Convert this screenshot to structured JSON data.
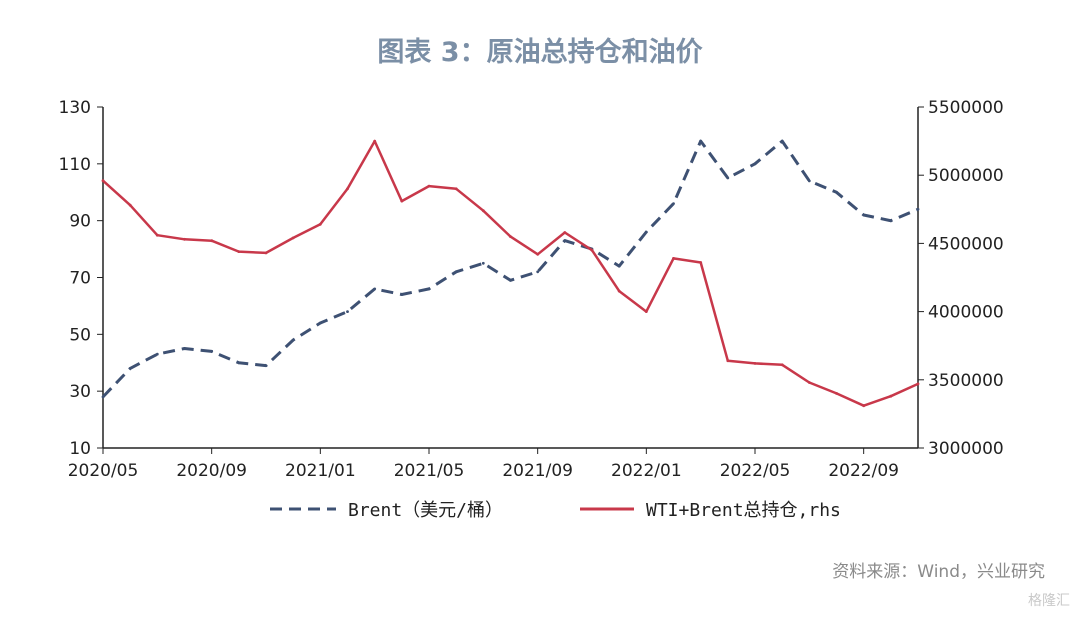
{
  "title": "图表 3：原油总持仓和油价",
  "source": "资料来源：Wind，兴业研究",
  "watermark": "格隆汇",
  "colors": {
    "brent": "#3e5173",
    "oi": "#c8384a"
  },
  "chart_data": {
    "type": "line",
    "x_ticks": [
      "2020/05",
      "2020/09",
      "2021/01",
      "2021/05",
      "2021/09",
      "2022/01",
      "2022/05",
      "2022/09"
    ],
    "left_axis": {
      "ticks": [
        "10",
        "30",
        "50",
        "70",
        "90",
        "110",
        "130"
      ],
      "ylim": [
        10,
        130
      ]
    },
    "right_axis": {
      "ticks": [
        "3000000",
        "3500000",
        "4000000",
        "4500000",
        "5000000",
        "5500000"
      ],
      "ylim": [
        3000000,
        5500000
      ]
    },
    "x_range": [
      "2020-05",
      "2022-11"
    ],
    "series": [
      {
        "name": "Brent（美元/桶）",
        "axis": "left",
        "style": "dashed",
        "x": [
          "2020-05",
          "2020-06",
          "2020-07",
          "2020-08",
          "2020-09",
          "2020-10",
          "2020-11",
          "2020-12",
          "2021-01",
          "2021-02",
          "2021-03",
          "2021-04",
          "2021-05",
          "2021-06",
          "2021-07",
          "2021-08",
          "2021-09",
          "2021-10",
          "2021-11",
          "2021-12",
          "2022-01",
          "2022-02",
          "2022-03",
          "2022-04",
          "2022-05",
          "2022-06",
          "2022-07",
          "2022-08",
          "2022-09",
          "2022-10",
          "2022-11"
        ],
        "values": [
          28,
          38,
          43,
          45,
          44,
          40,
          39,
          48,
          54,
          58,
          66,
          64,
          66,
          72,
          75,
          69,
          72,
          83,
          80,
          74,
          86,
          96,
          118,
          105,
          110,
          118,
          104,
          100,
          92,
          90,
          94
        ]
      },
      {
        "name": "WTI+Brent总持仓,rhs",
        "axis": "right",
        "style": "solid",
        "x": [
          "2020-05",
          "2020-06",
          "2020-07",
          "2020-08",
          "2020-09",
          "2020-10",
          "2020-11",
          "2020-12",
          "2021-01",
          "2021-02",
          "2021-03",
          "2021-04",
          "2021-05",
          "2021-06",
          "2021-07",
          "2021-08",
          "2021-09",
          "2021-10",
          "2021-11",
          "2021-12",
          "2022-01",
          "2022-02",
          "2022-03",
          "2022-04",
          "2022-05",
          "2022-06",
          "2022-07",
          "2022-08",
          "2022-09",
          "2022-10",
          "2022-11"
        ],
        "values": [
          4960000,
          4780000,
          4560000,
          4530000,
          4520000,
          4440000,
          4430000,
          4540000,
          4640000,
          4900000,
          5250000,
          4810000,
          4920000,
          4900000,
          4740000,
          4550000,
          4420000,
          4580000,
          4450000,
          4150000,
          4000000,
          4390000,
          4360000,
          3640000,
          3620000,
          3610000,
          3480000,
          3400000,
          3310000,
          3380000,
          3470000
        ]
      }
    ]
  }
}
